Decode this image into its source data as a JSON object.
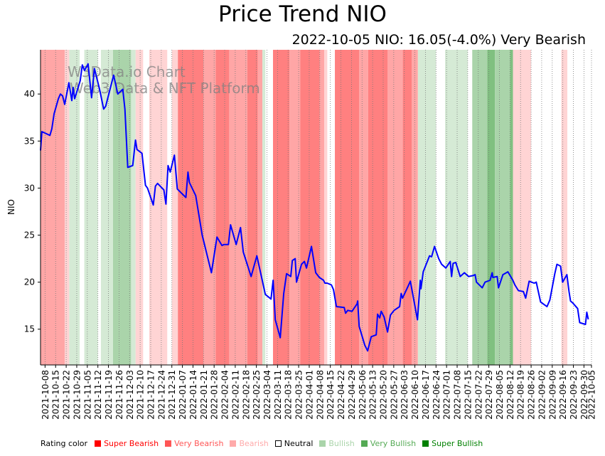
{
  "title": "Price Trend NIO",
  "subtitle": "2022-10-05 NIO: 16.05(-4.0%) Very Bearish",
  "watermark": [
    "W3Data.io Chart",
    "Web3 Data & NFT Platform"
  ],
  "legend": {
    "heading": "Rating color",
    "items": [
      {
        "label": "Super Bearish",
        "color": "#ff0000",
        "text_color": "#ff0000"
      },
      {
        "label": "Very Bearish",
        "color": "#ff5555",
        "text_color": "#ff5555"
      },
      {
        "label": "Bearish",
        "color": "#ffaaaa",
        "text_color": "#ffaaaa"
      },
      {
        "label": "Neutral",
        "color": "#ffffff",
        "text_color": "#000000"
      },
      {
        "label": "Bullish",
        "color": "#aad4aa",
        "text_color": "#aad4aa"
      },
      {
        "label": "Very Bullish",
        "color": "#55aa55",
        "text_color": "#55aa55"
      },
      {
        "label": "Super Bullish",
        "color": "#008000",
        "text_color": "#008000"
      }
    ]
  },
  "chart_data": {
    "type": "line",
    "title": "Price Trend NIO",
    "subtitle": "2022-10-05 NIO: 16.05(-4.0%) Very Bearish",
    "xlabel": "",
    "ylabel": "NIO",
    "ylim": [
      11.2,
      44.7
    ],
    "xlim": [
      "2021-10-05",
      "2022-10-05"
    ],
    "yticks": [
      15,
      20,
      25,
      30,
      35,
      40
    ],
    "xticks": [
      "2021-10-08",
      "2021-10-15",
      "2021-10-22",
      "2021-10-29",
      "2021-11-05",
      "2021-11-12",
      "2021-11-19",
      "2021-11-26",
      "2021-12-03",
      "2021-12-10",
      "2021-12-17",
      "2021-12-24",
      "2021-12-31",
      "2022-01-07",
      "2022-01-14",
      "2022-01-21",
      "2022-01-28",
      "2022-02-04",
      "2022-02-11",
      "2022-02-18",
      "2022-02-25",
      "2022-03-04",
      "2022-03-11",
      "2022-03-18",
      "2022-03-25",
      "2022-04-01",
      "2022-04-08",
      "2022-04-15",
      "2022-04-22",
      "2022-04-29",
      "2022-05-06",
      "2022-05-13",
      "2022-05-20",
      "2022-05-27",
      "2022-06-03",
      "2022-06-10",
      "2022-06-17",
      "2022-06-24",
      "2022-07-01",
      "2022-07-08",
      "2022-07-15",
      "2022-07-22",
      "2022-07-29",
      "2022-08-05",
      "2022-08-12",
      "2022-08-19",
      "2022-08-26",
      "2022-09-02",
      "2022-09-09",
      "2022-09-16",
      "2022-09-23",
      "2022-09-30",
      "2022-10-05"
    ],
    "grid": "vertical-dotted",
    "legend_position": "bottom",
    "series": [
      {
        "name": "NIO",
        "color": "#0000ff",
        "points": [
          {
            "d": 0.0,
            "v": 34.0
          },
          {
            "d": 0.9,
            "v": 36.0
          },
          {
            "d": 6.2,
            "v": 35.6
          },
          {
            "d": 7.5,
            "v": 36.3
          },
          {
            "d": 9.0,
            "v": 37.9
          },
          {
            "d": 11.8,
            "v": 39.5
          },
          {
            "d": 13.2,
            "v": 40.0
          },
          {
            "d": 14.6,
            "v": 39.8
          },
          {
            "d": 16.0,
            "v": 38.9
          },
          {
            "d": 18.8,
            "v": 41.2
          },
          {
            "d": 20.7,
            "v": 39.3
          },
          {
            "d": 21.6,
            "v": 40.7
          },
          {
            "d": 22.6,
            "v": 39.5
          },
          {
            "d": 26.3,
            "v": 41.4
          },
          {
            "d": 27.7,
            "v": 43.1
          },
          {
            "d": 29.1,
            "v": 42.5
          },
          {
            "d": 31.5,
            "v": 43.2
          },
          {
            "d": 33.8,
            "v": 39.6
          },
          {
            "d": 35.7,
            "v": 42.7
          },
          {
            "d": 39.0,
            "v": 40.6
          },
          {
            "d": 41.8,
            "v": 38.4
          },
          {
            "d": 43.2,
            "v": 38.7
          },
          {
            "d": 48.4,
            "v": 42.0
          },
          {
            "d": 51.2,
            "v": 40.0
          },
          {
            "d": 54.5,
            "v": 40.5
          },
          {
            "d": 55.9,
            "v": 38.4
          },
          {
            "d": 57.8,
            "v": 32.2
          },
          {
            "d": 61.1,
            "v": 32.4
          },
          {
            "d": 62.9,
            "v": 35.1
          },
          {
            "d": 63.9,
            "v": 34.1
          },
          {
            "d": 67.2,
            "v": 33.7
          },
          {
            "d": 69.5,
            "v": 30.3
          },
          {
            "d": 70.9,
            "v": 30.0
          },
          {
            "d": 74.7,
            "v": 28.2
          },
          {
            "d": 76.1,
            "v": 30.2
          },
          {
            "d": 77.5,
            "v": 30.5
          },
          {
            "d": 81.7,
            "v": 29.8
          },
          {
            "d": 83.1,
            "v": 28.3
          },
          {
            "d": 84.5,
            "v": 32.4
          },
          {
            "d": 85.9,
            "v": 31.7
          },
          {
            "d": 88.7,
            "v": 33.5
          },
          {
            "d": 90.6,
            "v": 29.9
          },
          {
            "d": 96.3,
            "v": 29.0
          },
          {
            "d": 97.7,
            "v": 31.7
          },
          {
            "d": 98.6,
            "v": 30.6
          },
          {
            "d": 102.8,
            "v": 29.2
          },
          {
            "d": 107.1,
            "v": 25.0
          },
          {
            "d": 113.2,
            "v": 21.0
          },
          {
            "d": 116.9,
            "v": 24.8
          },
          {
            "d": 120.2,
            "v": 23.9
          },
          {
            "d": 121.6,
            "v": 24.0
          },
          {
            "d": 124.5,
            "v": 24.0
          },
          {
            "d": 125.9,
            "v": 26.1
          },
          {
            "d": 129.6,
            "v": 24.0
          },
          {
            "d": 132.5,
            "v": 25.8
          },
          {
            "d": 134.3,
            "v": 23.2
          },
          {
            "d": 139.5,
            "v": 20.6
          },
          {
            "d": 143.3,
            "v": 22.8
          },
          {
            "d": 144.7,
            "v": 21.8
          },
          {
            "d": 148.9,
            "v": 18.7
          },
          {
            "d": 152.7,
            "v": 18.2
          },
          {
            "d": 154.1,
            "v": 20.2
          },
          {
            "d": 155.5,
            "v": 16.0
          },
          {
            "d": 158.8,
            "v": 14.1
          },
          {
            "d": 161.1,
            "v": 18.8
          },
          {
            "d": 163.0,
            "v": 20.9
          },
          {
            "d": 165.8,
            "v": 20.6
          },
          {
            "d": 166.8,
            "v": 22.3
          },
          {
            "d": 168.7,
            "v": 22.5
          },
          {
            "d": 169.6,
            "v": 20.0
          },
          {
            "d": 172.9,
            "v": 21.9
          },
          {
            "d": 174.8,
            "v": 22.2
          },
          {
            "d": 176.2,
            "v": 21.5
          },
          {
            "d": 179.5,
            "v": 23.8
          },
          {
            "d": 182.3,
            "v": 21.0
          },
          {
            "d": 184.7,
            "v": 20.5
          },
          {
            "d": 187.5,
            "v": 20.2
          },
          {
            "d": 188.4,
            "v": 19.9
          },
          {
            "d": 189.9,
            "v": 19.9
          },
          {
            "d": 192.7,
            "v": 19.7
          },
          {
            "d": 194.1,
            "v": 19.2
          },
          {
            "d": 196.0,
            "v": 17.4
          },
          {
            "d": 201.2,
            "v": 17.3
          },
          {
            "d": 202.1,
            "v": 16.7
          },
          {
            "d": 203.5,
            "v": 17.0
          },
          {
            "d": 206.4,
            "v": 16.9
          },
          {
            "d": 209.7,
            "v": 17.7
          },
          {
            "d": 210.1,
            "v": 18.0
          },
          {
            "d": 211.1,
            "v": 15.3
          },
          {
            "d": 214.8,
            "v": 13.3
          },
          {
            "d": 216.7,
            "v": 12.7
          },
          {
            "d": 219.1,
            "v": 14.2
          },
          {
            "d": 222.4,
            "v": 14.4
          },
          {
            "d": 223.3,
            "v": 16.6
          },
          {
            "d": 224.7,
            "v": 16.2
          },
          {
            "d": 225.7,
            "v": 16.9
          },
          {
            "d": 227.6,
            "v": 16.3
          },
          {
            "d": 229.9,
            "v": 14.7
          },
          {
            "d": 231.8,
            "v": 16.5
          },
          {
            "d": 234.2,
            "v": 17.0
          },
          {
            "d": 237.9,
            "v": 17.4
          },
          {
            "d": 238.9,
            "v": 18.8
          },
          {
            "d": 239.8,
            "v": 18.3
          },
          {
            "d": 243.6,
            "v": 19.6
          },
          {
            "d": 245.0,
            "v": 20.1
          },
          {
            "d": 249.7,
            "v": 16.0
          },
          {
            "d": 251.6,
            "v": 20.2
          },
          {
            "d": 252.0,
            "v": 19.3
          },
          {
            "d": 253.5,
            "v": 21.1
          },
          {
            "d": 257.7,
            "v": 22.8
          },
          {
            "d": 259.1,
            "v": 22.7
          },
          {
            "d": 261.0,
            "v": 23.8
          },
          {
            "d": 263.8,
            "v": 22.5
          },
          {
            "d": 265.7,
            "v": 21.9
          },
          {
            "d": 268.5,
            "v": 21.5
          },
          {
            "d": 271.4,
            "v": 22.2
          },
          {
            "d": 272.3,
            "v": 20.6
          },
          {
            "d": 273.3,
            "v": 22.0
          },
          {
            "d": 275.1,
            "v": 22.1
          },
          {
            "d": 278.0,
            "v": 20.6
          },
          {
            "d": 280.8,
            "v": 21.0
          },
          {
            "d": 283.6,
            "v": 20.6
          },
          {
            "d": 286.5,
            "v": 20.7
          },
          {
            "d": 287.9,
            "v": 20.8
          },
          {
            "d": 288.8,
            "v": 20.0
          },
          {
            "d": 292.6,
            "v": 19.4
          },
          {
            "d": 294.5,
            "v": 20.0
          },
          {
            "d": 297.8,
            "v": 20.2
          },
          {
            "d": 299.2,
            "v": 21.0
          },
          {
            "d": 299.7,
            "v": 20.5
          },
          {
            "d": 302.5,
            "v": 20.6
          },
          {
            "d": 303.4,
            "v": 19.4
          },
          {
            "d": 306.3,
            "v": 20.8
          },
          {
            "d": 309.6,
            "v": 21.1
          },
          {
            "d": 312.9,
            "v": 20.2
          },
          {
            "d": 314.3,
            "v": 19.7
          },
          {
            "d": 316.6,
            "v": 19.1
          },
          {
            "d": 319.9,
            "v": 19.0
          },
          {
            "d": 321.4,
            "v": 18.3
          },
          {
            "d": 323.7,
            "v": 20.1
          },
          {
            "d": 327.0,
            "v": 19.9
          },
          {
            "d": 328.4,
            "v": 20.0
          },
          {
            "d": 331.3,
            "v": 17.9
          },
          {
            "d": 335.5,
            "v": 17.4
          },
          {
            "d": 337.4,
            "v": 18.1
          },
          {
            "d": 340.7,
            "v": 20.9
          },
          {
            "d": 342.1,
            "v": 21.9
          },
          {
            "d": 344.5,
            "v": 21.7
          },
          {
            "d": 345.9,
            "v": 20.0
          },
          {
            "d": 348.7,
            "v": 20.8
          },
          {
            "d": 350.1,
            "v": 19.0
          },
          {
            "d": 351.1,
            "v": 18.0
          },
          {
            "d": 352.5,
            "v": 17.8
          },
          {
            "d": 355.8,
            "v": 17.2
          },
          {
            "d": 357.2,
            "v": 15.7
          },
          {
            "d": 361.0,
            "v": 15.5
          },
          {
            "d": 361.9,
            "v": 16.8
          },
          {
            "d": 362.9,
            "v": 16.05
          }
        ]
      }
    ],
    "rating_bands": [
      {
        "from": 0,
        "to": 16,
        "rating": "Very Bearish"
      },
      {
        "from": 16,
        "to": 19,
        "rating": "Bearish"
      },
      {
        "from": 19,
        "to": 26,
        "rating": "Bullish"
      },
      {
        "from": 26,
        "to": 29,
        "rating": "Neutral"
      },
      {
        "from": 29,
        "to": 38,
        "rating": "Bullish"
      },
      {
        "from": 38,
        "to": 40,
        "rating": "Neutral"
      },
      {
        "from": 40,
        "to": 48,
        "rating": "Bullish"
      },
      {
        "from": 48,
        "to": 52,
        "rating": "Very Bullish"
      },
      {
        "from": 52,
        "to": 60,
        "rating": "Very Bullish"
      },
      {
        "from": 60,
        "to": 63,
        "rating": "Bullish"
      },
      {
        "from": 63,
        "to": 68,
        "rating": "Bearish"
      },
      {
        "from": 68,
        "to": 72,
        "rating": "Neutral"
      },
      {
        "from": 72,
        "to": 84,
        "rating": "Bearish"
      },
      {
        "from": 84,
        "to": 87,
        "rating": "Neutral"
      },
      {
        "from": 87,
        "to": 91,
        "rating": "Bearish"
      },
      {
        "from": 91,
        "to": 108,
        "rating": "Super Bearish"
      },
      {
        "from": 108,
        "to": 116,
        "rating": "Very Bearish"
      },
      {
        "from": 116,
        "to": 125,
        "rating": "Super Bearish"
      },
      {
        "from": 125,
        "to": 137,
        "rating": "Very Bearish"
      },
      {
        "from": 137,
        "to": 144,
        "rating": "Super Bearish"
      },
      {
        "from": 144,
        "to": 147,
        "rating": "Very Bearish"
      },
      {
        "from": 147,
        "to": 149,
        "rating": "Bullish"
      },
      {
        "from": 149,
        "to": 154,
        "rating": "Neutral"
      },
      {
        "from": 154,
        "to": 165,
        "rating": "Super Bearish"
      },
      {
        "from": 165,
        "to": 172,
        "rating": "Very Bearish"
      },
      {
        "from": 172,
        "to": 185,
        "rating": "Super Bearish"
      },
      {
        "from": 185,
        "to": 188,
        "rating": "Very Bearish"
      },
      {
        "from": 188,
        "to": 190,
        "rating": "Bearish"
      },
      {
        "from": 190,
        "to": 195,
        "rating": "Neutral"
      },
      {
        "from": 195,
        "to": 211,
        "rating": "Super Bearish"
      },
      {
        "from": 211,
        "to": 217,
        "rating": "Very Bearish"
      },
      {
        "from": 217,
        "to": 230,
        "rating": "Super Bearish"
      },
      {
        "from": 230,
        "to": 240,
        "rating": "Very Bearish"
      },
      {
        "from": 240,
        "to": 246,
        "rating": "Super Bearish"
      },
      {
        "from": 246,
        "to": 250,
        "rating": "Very Bearish"
      },
      {
        "from": 250,
        "to": 262,
        "rating": "Bullish"
      },
      {
        "from": 262,
        "to": 268,
        "rating": "Neutral"
      },
      {
        "from": 268,
        "to": 283,
        "rating": "Bullish"
      },
      {
        "from": 283,
        "to": 286,
        "rating": "Neutral"
      },
      {
        "from": 286,
        "to": 296,
        "rating": "Very Bullish"
      },
      {
        "from": 296,
        "to": 301,
        "rating": "Super Bullish"
      },
      {
        "from": 301,
        "to": 311,
        "rating": "Very Bullish"
      },
      {
        "from": 311,
        "to": 313,
        "rating": "Super Bullish"
      },
      {
        "from": 313,
        "to": 325,
        "rating": "Bearish"
      },
      {
        "from": 325,
        "to": 345,
        "rating": "Neutral"
      },
      {
        "from": 345,
        "to": 349,
        "rating": "Bearish"
      },
      {
        "from": 349,
        "to": 354,
        "rating": "Neutral"
      }
    ]
  }
}
